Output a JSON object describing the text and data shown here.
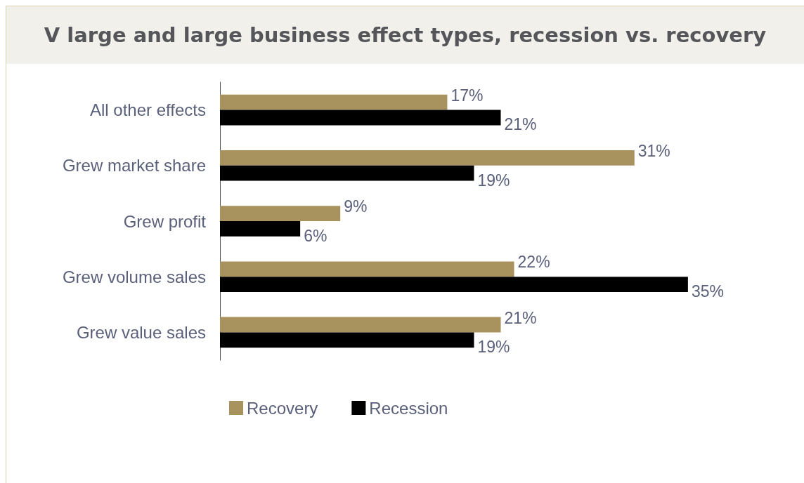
{
  "chart_data": {
    "type": "bar",
    "orientation": "horizontal",
    "title": "V large and large business effect types, recession vs. recovery",
    "categories": [
      "All other effects",
      "Grew market share",
      "Grew profit",
      "Grew volume sales",
      "Grew value sales"
    ],
    "series": [
      {
        "name": "Recovery",
        "color": "#a8925e",
        "values": [
          17,
          31,
          9,
          22,
          21
        ],
        "value_labels": [
          "17%",
          "31%",
          "9%",
          "22%",
          "21%"
        ]
      },
      {
        "name": "Recession",
        "color": "#000000",
        "values": [
          21,
          19,
          6,
          35,
          19
        ],
        "value_labels": [
          "21%",
          "19%",
          "6%",
          "35%",
          "19%"
        ]
      }
    ],
    "grid": false,
    "legend": "bottom"
  }
}
